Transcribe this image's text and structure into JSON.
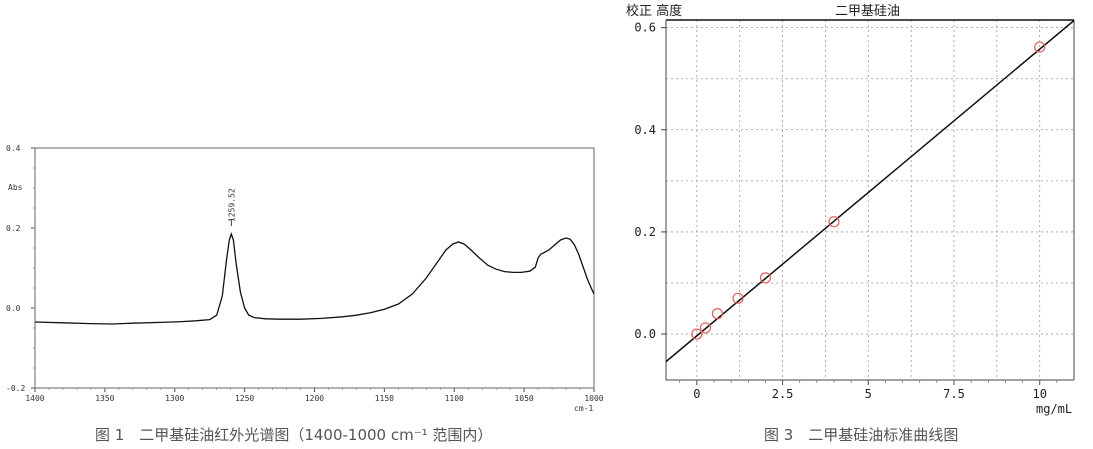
{
  "chart_data": [
    {
      "type": "line",
      "caption": "图 1　二甲基硅油红外光谱图（1400-1000 cm⁻¹ 范围内）",
      "ylabel": "Abs",
      "xunit": "cm-1",
      "xlim": [
        1400,
        1000
      ],
      "ylim": [
        -0.2,
        0.4
      ],
      "x_ticks": [
        1400,
        1350,
        1300,
        1250,
        1200,
        1150,
        1100,
        1050,
        1000
      ],
      "y_ticks": [
        0.4,
        0.2,
        0.0,
        -0.2
      ],
      "x_tick_labels": [
        "1400",
        "1350",
        "1300",
        "1250",
        "1200",
        "1150",
        "1100",
        "1050",
        "1000"
      ],
      "y_tick_labels": [
        "0.4",
        "0.2",
        "0.0",
        "-0.2"
      ],
      "annotation": "1259.52",
      "annotation_x": 1259.52,
      "series": [
        {
          "x": [
            1400,
            1380,
            1360,
            1345,
            1330,
            1310,
            1295,
            1285,
            1275,
            1270,
            1266,
            1263,
            1261,
            1259.5,
            1258,
            1256,
            1253,
            1250,
            1247,
            1243,
            1235,
            1225,
            1210,
            1195,
            1180,
            1170,
            1160,
            1150,
            1140,
            1130,
            1120,
            1112,
            1106,
            1101,
            1097,
            1093,
            1088,
            1082,
            1076,
            1070,
            1064,
            1058,
            1052,
            1046,
            1042,
            1040,
            1038,
            1036,
            1032,
            1028,
            1024,
            1020,
            1017,
            1014,
            1011,
            1008,
            1005,
            1002,
            1000
          ],
          "y": [
            -0.035,
            -0.037,
            -0.039,
            -0.04,
            -0.038,
            -0.036,
            -0.034,
            -0.032,
            -0.029,
            -0.018,
            0.03,
            0.12,
            0.17,
            0.185,
            0.17,
            0.11,
            0.04,
            0.0,
            -0.018,
            -0.024,
            -0.027,
            -0.028,
            -0.028,
            -0.026,
            -0.022,
            -0.018,
            -0.012,
            -0.003,
            0.01,
            0.035,
            0.075,
            0.115,
            0.145,
            0.16,
            0.165,
            0.16,
            0.145,
            0.125,
            0.107,
            0.097,
            0.091,
            0.089,
            0.089,
            0.092,
            0.102,
            0.125,
            0.135,
            0.138,
            0.146,
            0.158,
            0.17,
            0.175,
            0.172,
            0.158,
            0.135,
            0.105,
            0.075,
            0.05,
            0.035
          ]
        }
      ]
    },
    {
      "type": "scatter",
      "caption": "图 3　二甲基硅油标准曲线图",
      "header_left": "校正 高度",
      "title": "二甲基硅油",
      "xlabel": "mg/mL",
      "xlim": [
        -0.9,
        11.0
      ],
      "ylim": [
        -0.09,
        0.615
      ],
      "x_ticks": [
        0,
        2.5,
        5,
        7.5,
        10
      ],
      "y_ticks": [
        0.0,
        0.2,
        0.4,
        0.6
      ],
      "x_tick_labels": [
        "0",
        "2.5",
        "5",
        "7.5",
        "10"
      ],
      "y_tick_labels": [
        "0.0",
        "0.2",
        "0.4",
        "0.6"
      ],
      "grid": true,
      "series": [
        {
          "x": [
            0,
            0.25,
            0.6,
            1.2,
            2.0,
            4.0,
            10.0
          ],
          "y": [
            0.0,
            0.012,
            0.04,
            0.07,
            0.11,
            0.22,
            0.562
          ]
        }
      ],
      "fit_line": {
        "x": [
          -0.9,
          11.0
        ],
        "y": [
          -0.054,
          0.614
        ]
      },
      "marker_color": "#e06060"
    }
  ]
}
